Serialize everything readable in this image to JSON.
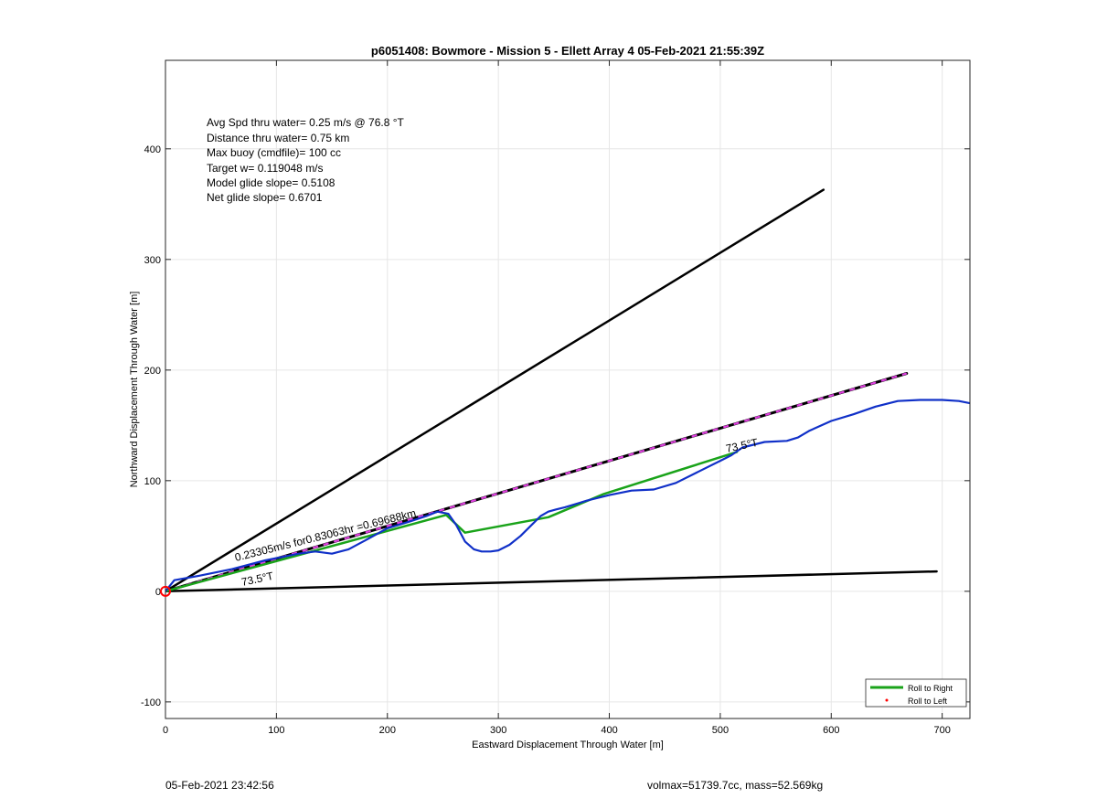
{
  "chart_data": {
    "type": "line",
    "title": "p6051408: Bowmore - Mission 5 - Ellett Array 4 05-Feb-2021 21:55:39Z",
    "xlabel": "Eastward Displacement Through Water [m]",
    "ylabel": "Northward Displacement Through Water [m]",
    "xlim": [
      0,
      725
    ],
    "ylim": [
      -115,
      480
    ],
    "xticks": [
      0,
      100,
      200,
      300,
      400,
      500,
      600,
      700
    ],
    "yticks": [
      -100,
      0,
      100,
      200,
      300,
      400
    ],
    "grid": true,
    "legend_position": "bottom-right",
    "info_lines": [
      "Avg Spd thru water=  0.25 m/s @  76.8 °T",
      "Distance thru water=  0.75 km",
      "Max buoy (cmdfile)= 100 cc",
      "Target w= 0.119048 m/s",
      "Model glide slope= 0.5108",
      "Net glide slope= 0.6701"
    ],
    "annotations": {
      "heading_low": "73.5°T",
      "heading_high": "73.5°T",
      "speed_label": "0.23305m/s for0.83063hr =0.69688km"
    },
    "legend": [
      {
        "label": "Roll to Right",
        "color": "#1aa31a",
        "style": "line"
      },
      {
        "label": "Roll to Left",
        "color": "#ff0000",
        "style": "dot"
      }
    ],
    "series": [
      {
        "role": "boundary-upper",
        "color": "#000000",
        "x": [
          0,
          593
        ],
        "y": [
          0,
          363
        ]
      },
      {
        "role": "boundary-lower",
        "color": "#000000",
        "x": [
          0,
          695
        ],
        "y": [
          0,
          18
        ]
      },
      {
        "role": "mean-track",
        "color": "#000000",
        "dash_color": "#e040e0",
        "x": [
          0,
          668
        ],
        "y": [
          0,
          197
        ]
      },
      {
        "role": "roll-right",
        "color": "#1aa31a",
        "x": [
          0,
          253,
          270,
          345,
          395,
          515
        ],
        "y": [
          0,
          69,
          53,
          67,
          88,
          126
        ]
      },
      {
        "role": "glider-track",
        "color": "#1030c8",
        "x": [
          0,
          8,
          30,
          60,
          90,
          120,
          135,
          150,
          165,
          180,
          200,
          220,
          235,
          245,
          255,
          262,
          270,
          278,
          285,
          293,
          300,
          310,
          320,
          330,
          338,
          345,
          352,
          360,
          380,
          400,
          420,
          440,
          460,
          480,
          500,
          510,
          520,
          540,
          560,
          570,
          580,
          600,
          620,
          640,
          660,
          680,
          700,
          715,
          725
        ],
        "y": [
          0,
          10,
          14,
          20,
          28,
          34,
          36,
          34,
          38,
          46,
          57,
          63,
          68,
          72,
          70,
          60,
          45,
          38,
          36,
          36,
          37,
          42,
          50,
          60,
          68,
          72,
          74,
          76,
          82,
          87,
          91,
          92,
          98,
          108,
          118,
          123,
          130,
          135,
          136,
          139,
          145,
          154,
          160,
          167,
          172,
          173,
          173,
          172,
          170
        ]
      }
    ],
    "start_marker": {
      "x": 0,
      "y": 0,
      "color": "#ff0000"
    }
  },
  "footer": {
    "left": "05-Feb-2021 23:42:56",
    "right": "volmax=51739.7cc, mass=52.569kg"
  }
}
